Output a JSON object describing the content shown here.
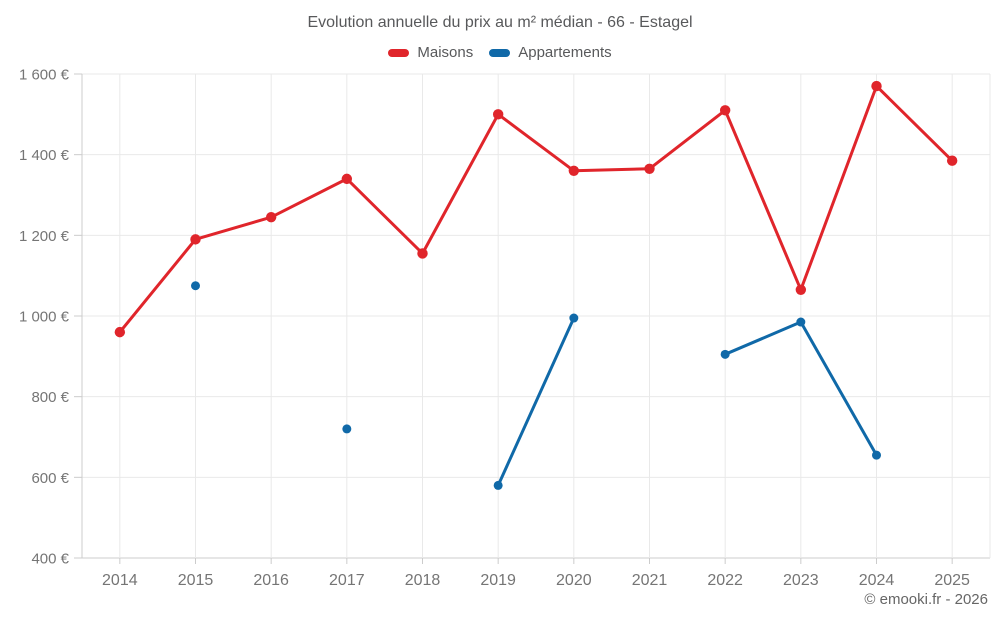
{
  "title": "Evolution annuelle du prix au m² médian - 66 - Estagel",
  "legend": [
    {
      "label": "Maisons",
      "color": "#e0252b"
    },
    {
      "label": "Appartements",
      "color": "#1069a8"
    }
  ],
  "footer": "© emooki.fr - 2026",
  "colors": {
    "maisons": "#e0252b",
    "appartements": "#1069a8",
    "grid": "#e9e9e9",
    "axis": "#cccccc",
    "tick_text": "#757575",
    "title_text": "#58595b"
  },
  "chart_data": {
    "type": "line",
    "categories": [
      "2014",
      "2015",
      "2016",
      "2017",
      "2018",
      "2019",
      "2020",
      "2021",
      "2022",
      "2023",
      "2024",
      "2025"
    ],
    "series": [
      {
        "name": "Maisons",
        "color": "#e0252b",
        "point_radius": 5.2,
        "line_width": 3,
        "values": [
          960,
          1190,
          1245,
          1340,
          1155,
          1500,
          1360,
          1365,
          1510,
          1065,
          1570,
          1385
        ]
      },
      {
        "name": "Appartements",
        "color": "#1069a8",
        "point_radius": 4.5,
        "line_width": 3,
        "values": [
          null,
          1075,
          null,
          720,
          null,
          580,
          995,
          null,
          905,
          985,
          655,
          null
        ]
      }
    ],
    "title": "Evolution annuelle du prix au m² médian - 66 - Estagel",
    "xlabel": "",
    "ylabel": "",
    "ylim": [
      400,
      1600
    ],
    "ytick_step": 200,
    "currency_suffix": " €",
    "grid": true,
    "span_gaps": false,
    "legend_position": "top"
  }
}
